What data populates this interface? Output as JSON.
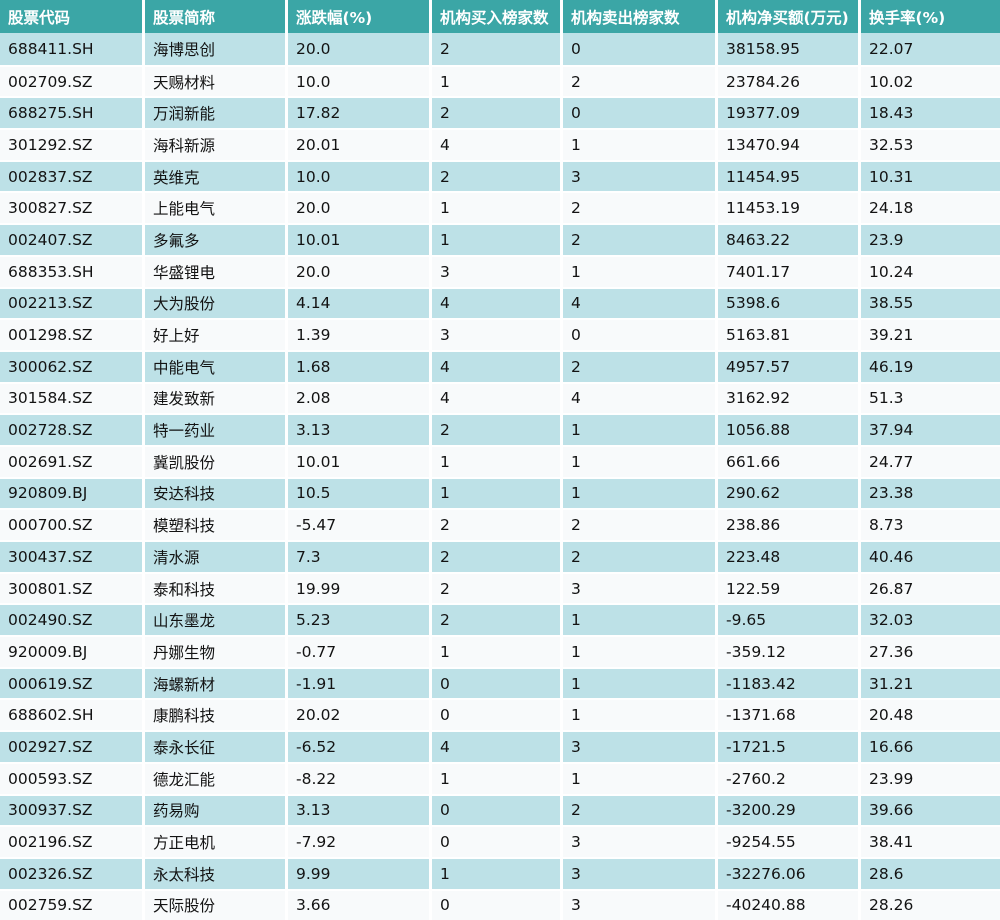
{
  "colors": {
    "header_bg": "#3BA6A6",
    "header_text": "#FFFFFF",
    "row_odd_bg": "#BDE1E7",
    "row_even_bg": "#F8FAFB",
    "divider": "#FFFFFF",
    "cell_text": "#131313"
  },
  "chart_data": {
    "type": "table",
    "title": "",
    "columns": [
      "股票代码",
      "股票简称",
      "涨跌幅(%)",
      "机构买入榜家数",
      "机构卖出榜家数",
      "机构净买额(万元)",
      "换手率(%)"
    ],
    "column_keys": [
      "stock-code",
      "stock-name",
      "change-pct",
      "inst-buy-count",
      "inst-sell-count",
      "inst-net-buy-amount",
      "turnover-rate"
    ],
    "rows": [
      [
        "688411.SH",
        "海博思创",
        "20.0",
        "2",
        "0",
        "38158.95",
        "22.07"
      ],
      [
        "002709.SZ",
        "天赐材料",
        "10.0",
        "1",
        "2",
        "23784.26",
        "10.02"
      ],
      [
        "688275.SH",
        "万润新能",
        "17.82",
        "2",
        "0",
        "19377.09",
        "18.43"
      ],
      [
        "301292.SZ",
        "海科新源",
        "20.01",
        "4",
        "1",
        "13470.94",
        "32.53"
      ],
      [
        "002837.SZ",
        "英维克",
        "10.0",
        "2",
        "3",
        "11454.95",
        "10.31"
      ],
      [
        "300827.SZ",
        "上能电气",
        "20.0",
        "1",
        "2",
        "11453.19",
        "24.18"
      ],
      [
        "002407.SZ",
        "多氟多",
        "10.01",
        "1",
        "2",
        "8463.22",
        "23.9"
      ],
      [
        "688353.SH",
        "华盛锂电",
        "20.0",
        "3",
        "1",
        "7401.17",
        "10.24"
      ],
      [
        "002213.SZ",
        "大为股份",
        "4.14",
        "4",
        "4",
        "5398.6",
        "38.55"
      ],
      [
        "001298.SZ",
        "好上好",
        "1.39",
        "3",
        "0",
        "5163.81",
        "39.21"
      ],
      [
        "300062.SZ",
        "中能电气",
        "1.68",
        "4",
        "2",
        "4957.57",
        "46.19"
      ],
      [
        "301584.SZ",
        "建发致新",
        "2.08",
        "4",
        "4",
        "3162.92",
        "51.3"
      ],
      [
        "002728.SZ",
        "特一药业",
        "3.13",
        "2",
        "1",
        "1056.88",
        "37.94"
      ],
      [
        "002691.SZ",
        "冀凯股份",
        "10.01",
        "1",
        "1",
        "661.66",
        "24.77"
      ],
      [
        "920809.BJ",
        "安达科技",
        "10.5",
        "1",
        "1",
        "290.62",
        "23.38"
      ],
      [
        "000700.SZ",
        "模塑科技",
        "-5.47",
        "2",
        "2",
        "238.86",
        "8.73"
      ],
      [
        "300437.SZ",
        "清水源",
        "7.3",
        "2",
        "2",
        "223.48",
        "40.46"
      ],
      [
        "300801.SZ",
        "泰和科技",
        "19.99",
        "2",
        "3",
        "122.59",
        "26.87"
      ],
      [
        "002490.SZ",
        "山东墨龙",
        "5.23",
        "2",
        "1",
        "-9.65",
        "32.03"
      ],
      [
        "920009.BJ",
        "丹娜生物",
        "-0.77",
        "1",
        "1",
        "-359.12",
        "27.36"
      ],
      [
        "000619.SZ",
        "海螺新材",
        "-1.91",
        "0",
        "1",
        "-1183.42",
        "31.21"
      ],
      [
        "688602.SH",
        "康鹏科技",
        "20.02",
        "0",
        "1",
        "-1371.68",
        "20.48"
      ],
      [
        "002927.SZ",
        "泰永长征",
        "-6.52",
        "4",
        "3",
        "-1721.5",
        "16.66"
      ],
      [
        "000593.SZ",
        "德龙汇能",
        "-8.22",
        "1",
        "1",
        "-2760.2",
        "23.99"
      ],
      [
        "300937.SZ",
        "药易购",
        "3.13",
        "0",
        "2",
        "-3200.29",
        "39.66"
      ],
      [
        "002196.SZ",
        "方正电机",
        "-7.92",
        "0",
        "3",
        "-9254.55",
        "38.41"
      ],
      [
        "002326.SZ",
        "永太科技",
        "9.99",
        "1",
        "3",
        "-32276.06",
        "28.6"
      ],
      [
        "002759.SZ",
        "天际股份",
        "3.66",
        "0",
        "3",
        "-40240.88",
        "28.26"
      ]
    ]
  }
}
